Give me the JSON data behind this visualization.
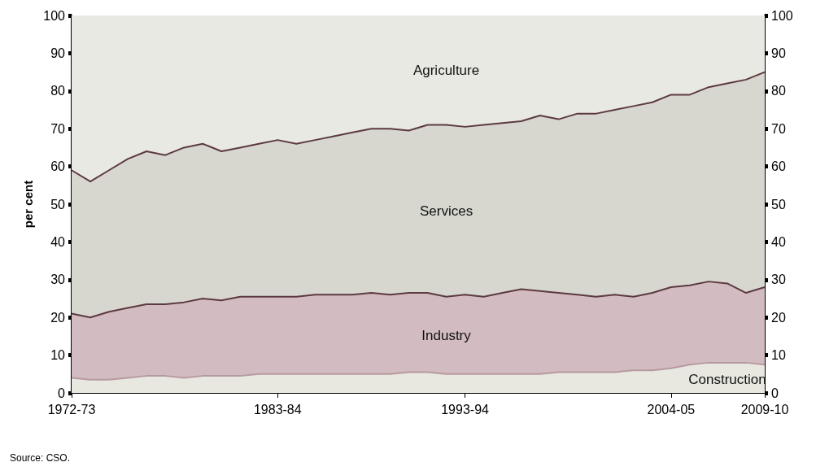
{
  "chart_data": {
    "type": "area",
    "stacked": true,
    "ylabel": "per cent",
    "categories": [
      "1972-73",
      null,
      null,
      null,
      null,
      null,
      null,
      null,
      null,
      null,
      null,
      "1983-84",
      null,
      null,
      null,
      null,
      null,
      null,
      null,
      null,
      null,
      "1993-94",
      null,
      null,
      null,
      null,
      null,
      null,
      null,
      null,
      null,
      null,
      "2004-05",
      null,
      null,
      null,
      null,
      "2009-10"
    ],
    "series": [
      {
        "name": "Construction",
        "color": "#e8e8e1",
        "values": [
          4,
          3.5,
          3.5,
          4,
          4.5,
          4.5,
          4,
          4.5,
          4.5,
          4.5,
          5,
          5,
          5,
          5,
          5,
          5,
          5,
          5,
          5.5,
          5.5,
          5,
          5,
          5,
          5,
          5,
          5,
          5.5,
          5.5,
          5.5,
          5.5,
          6,
          6,
          6.5,
          7.5,
          8,
          8,
          8,
          7.5
        ]
      },
      {
        "name": "Industry",
        "color": "#d2bbc1",
        "values": [
          17,
          16.5,
          18,
          18.5,
          19,
          19,
          20,
          20.5,
          20,
          21,
          20.5,
          20.5,
          20.5,
          21,
          21,
          21,
          21.5,
          21,
          21,
          21,
          20.5,
          21,
          20.5,
          21.5,
          22.5,
          22,
          21,
          20.5,
          20,
          20.5,
          19.5,
          20.5,
          21.5,
          21,
          21.5,
          21,
          18.5,
          20.5
        ]
      },
      {
        "name": "Services",
        "color": "#d7d7d0",
        "values": [
          38,
          36,
          37.5,
          39.5,
          40.5,
          39.5,
          41,
          41,
          39.5,
          39.5,
          40.5,
          41.5,
          40.5,
          41,
          42,
          43,
          43.5,
          44,
          43,
          44.5,
          45.5,
          44.5,
          45.5,
          45,
          44.5,
          46.5,
          46,
          48,
          48.5,
          49,
          50.5,
          50.5,
          51,
          50.5,
          51.5,
          53,
          56.5,
          57
        ]
      },
      {
        "name": "Agriculture",
        "color": "#e9e9e3",
        "values": [
          41,
          44,
          41,
          38,
          36,
          37,
          35,
          34,
          36,
          35,
          34,
          33,
          34,
          33,
          32,
          31,
          30,
          30,
          30.5,
          29,
          29,
          29.5,
          29,
          28.5,
          28,
          26.5,
          27.5,
          26,
          26,
          25,
          24,
          23,
          21,
          21,
          19,
          18,
          17,
          15
        ]
      }
    ],
    "ylim": [
      0,
      100
    ],
    "yticks": [
      0,
      10,
      20,
      30,
      40,
      50,
      60,
      70,
      80,
      90,
      100
    ],
    "y2lim": [
      0,
      100
    ],
    "y2ticks": [
      0,
      10,
      20,
      30,
      40,
      50,
      60,
      70,
      80,
      90,
      100
    ],
    "legend": false,
    "annotations": [
      "Source: CSO."
    ]
  }
}
